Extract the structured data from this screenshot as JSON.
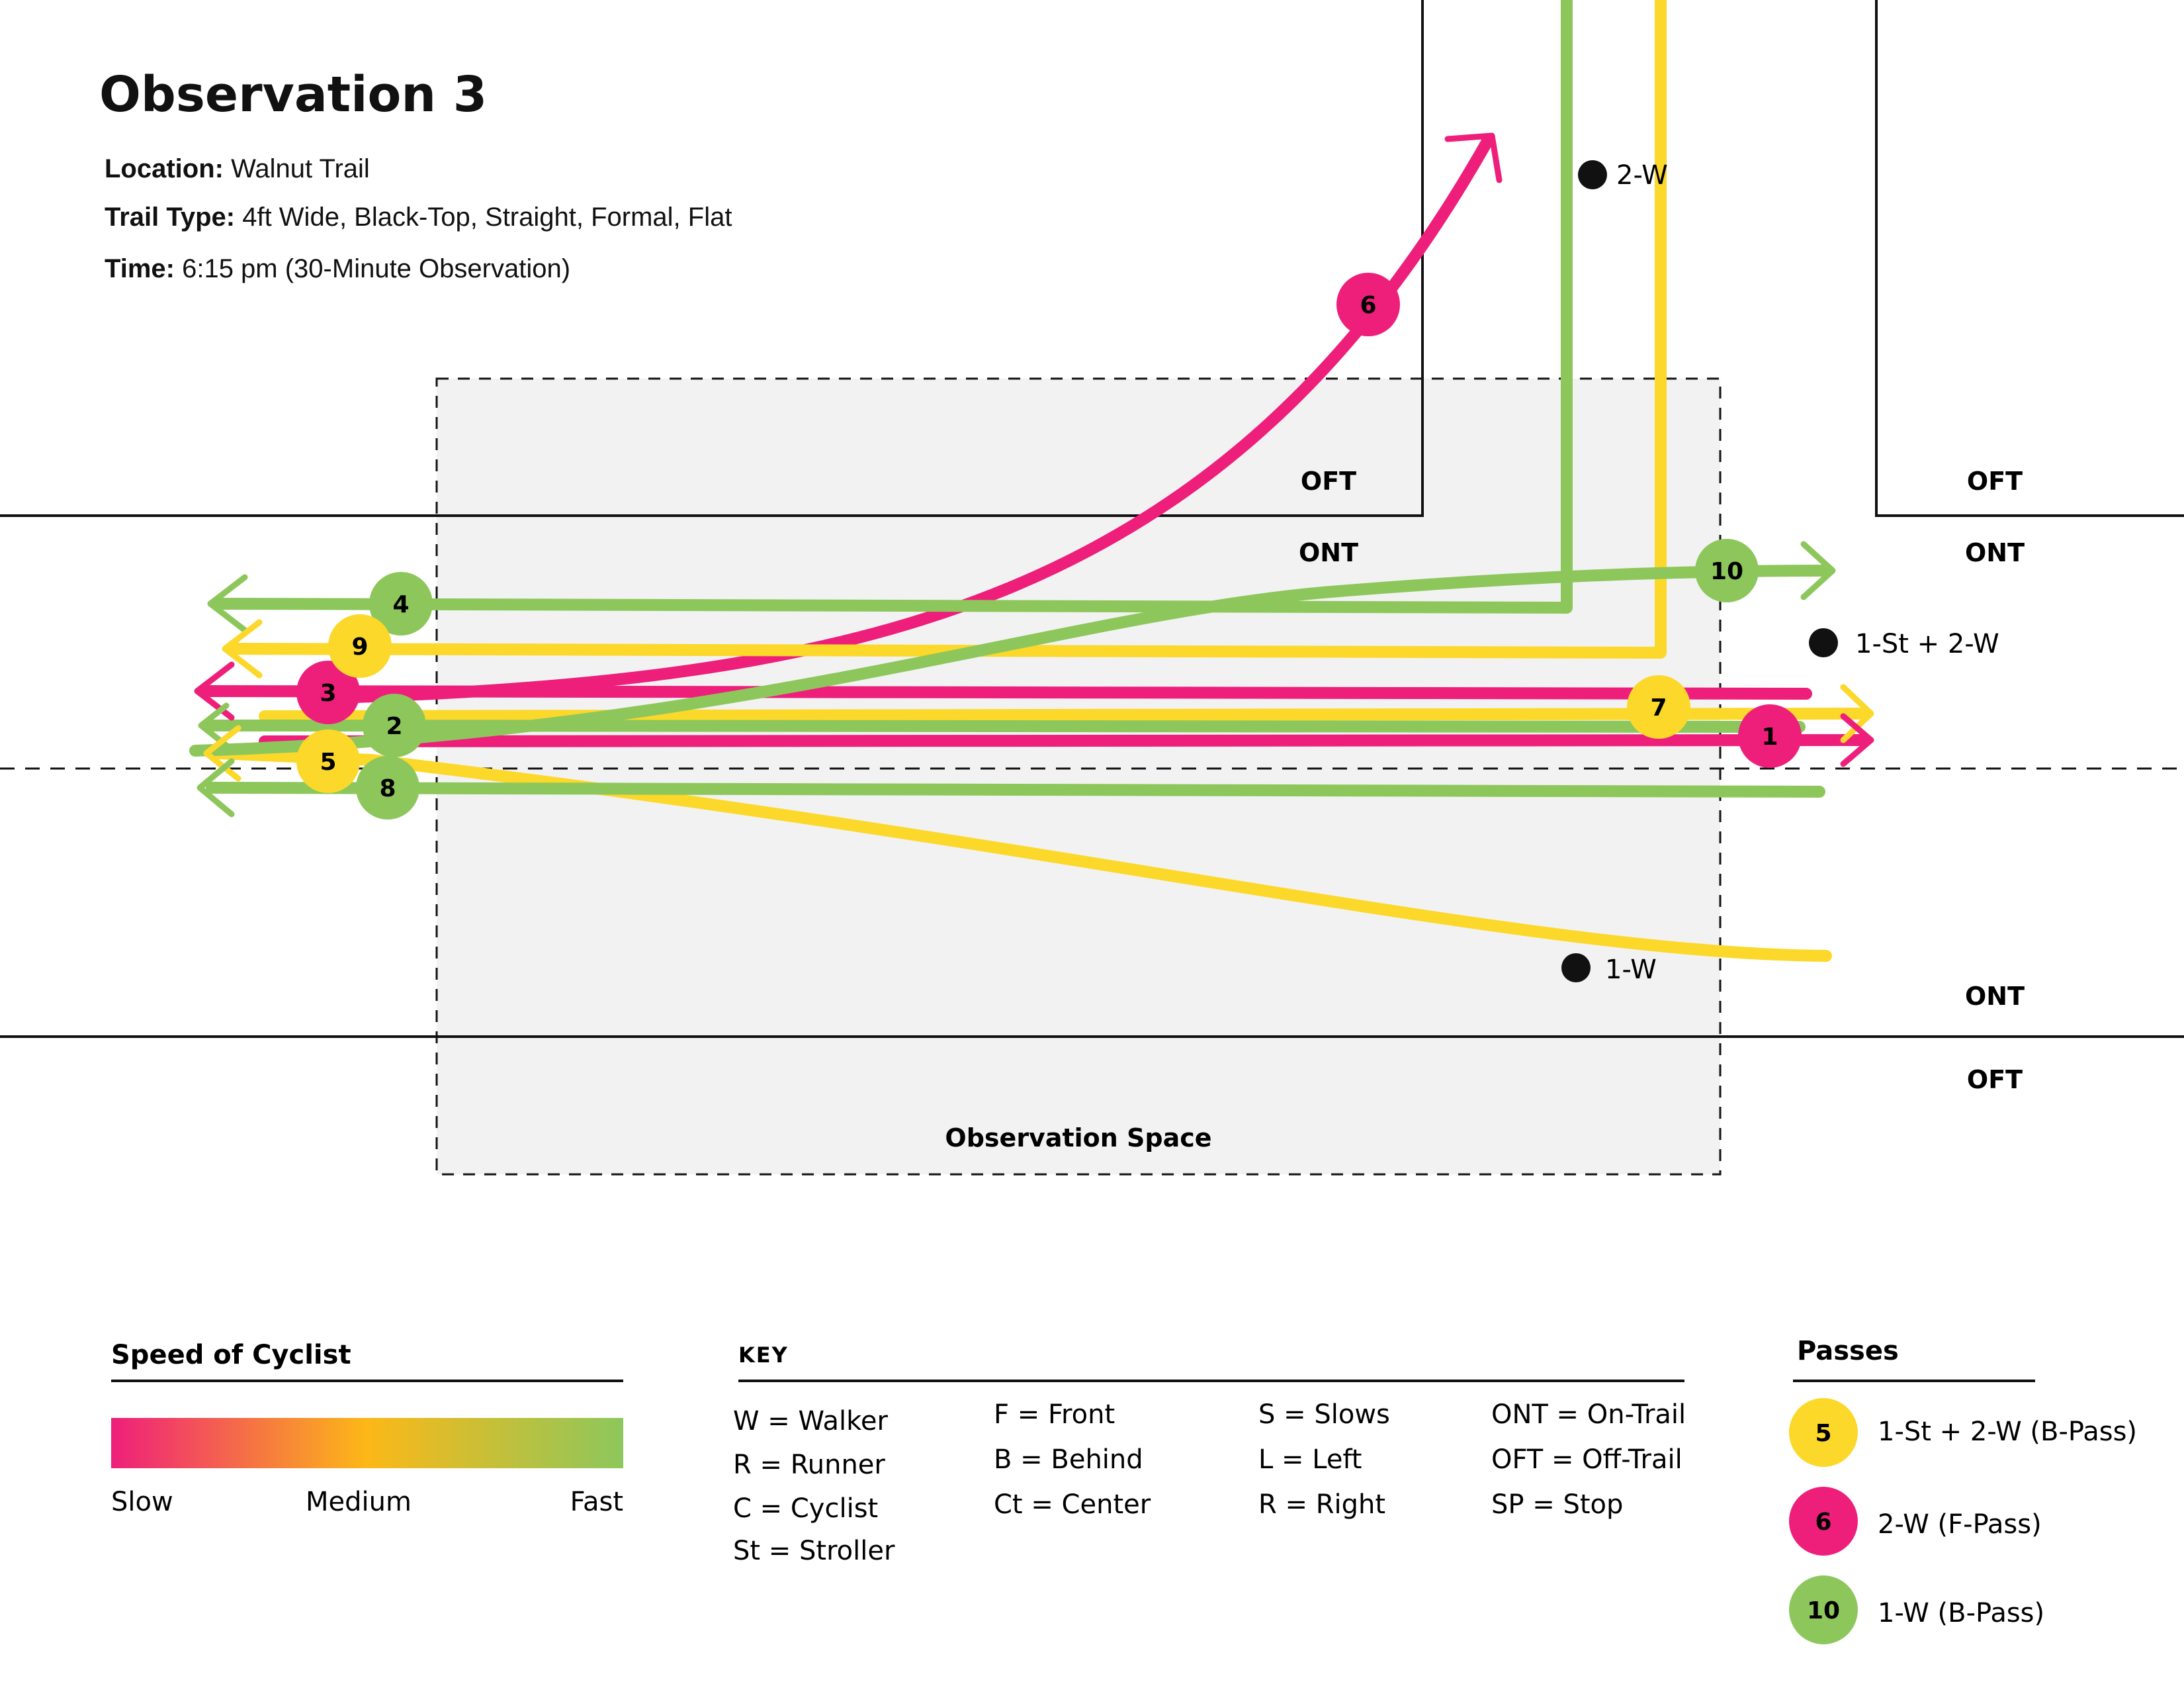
{
  "header": {
    "title": "Observation 3",
    "location_label": "Location:",
    "location_value": "Walnut Trail",
    "trail_type_label": "Trail Type:",
    "trail_type_value": "4ft Wide, Black-Top, Straight, Formal, Flat",
    "time_label": "Time:",
    "time_value": "6:15 pm (30-Minute Observation)"
  },
  "zones": {
    "oft_left_top": "OFT",
    "oft_right_top": "OFT",
    "ont_left_top": "ONT",
    "ont_right_top": "ONT",
    "ont_bottom": "ONT",
    "oft_bottom": "OFT",
    "observation_space": "Observation Space"
  },
  "markers": [
    {
      "id": "m1",
      "label": "2-W"
    },
    {
      "id": "m2",
      "label": "1-St + 2-W"
    },
    {
      "id": "m3",
      "label": "1-W"
    }
  ],
  "paths": [
    {
      "number": "1",
      "speed": "slow",
      "color": "#EE1F7B"
    },
    {
      "number": "2",
      "speed": "fast",
      "color": "#8DC75C"
    },
    {
      "number": "3",
      "speed": "slow",
      "color": "#EE1F7B"
    },
    {
      "number": "4",
      "speed": "fast",
      "color": "#8DC75C"
    },
    {
      "number": "5",
      "speed": "medium",
      "color": "#FCD82A"
    },
    {
      "number": "6",
      "speed": "slow",
      "color": "#EE1F7B"
    },
    {
      "number": "7",
      "speed": "medium",
      "color": "#FCD82A"
    },
    {
      "number": "8",
      "speed": "fast",
      "color": "#8DC75C"
    },
    {
      "number": "9",
      "speed": "medium",
      "color": "#FCD82A"
    },
    {
      "number": "10",
      "speed": "fast",
      "color": "#8DC75C"
    }
  ],
  "speed_legend": {
    "title": "Speed of Cyclist",
    "slow": "Slow",
    "medium": "Medium",
    "fast": "Fast",
    "colors": [
      "#EE1F7B",
      "#FCB817",
      "#8DC75C"
    ]
  },
  "key": {
    "title": "KEY",
    "columns": [
      [
        "W = Walker",
        "R = Runner",
        "C = Cyclist",
        "St = Stroller"
      ],
      [
        "F = Front",
        "B = Behind",
        "Ct = Center"
      ],
      [
        "S = Slows",
        "L = Left",
        "R = Right"
      ],
      [
        "ONT = On-Trail",
        "OFT = Off-Trail",
        "SP = Stop"
      ]
    ]
  },
  "passes": {
    "title": "Passes",
    "items": [
      {
        "number": "5",
        "label": "1-St + 2-W (B-Pass)",
        "color": "#FCD82A"
      },
      {
        "number": "6",
        "label": "2-W (F-Pass)",
        "color": "#EE1F7B"
      },
      {
        "number": "10",
        "label": "1-W (B-Pass)",
        "color": "#8DC75C"
      }
    ]
  }
}
